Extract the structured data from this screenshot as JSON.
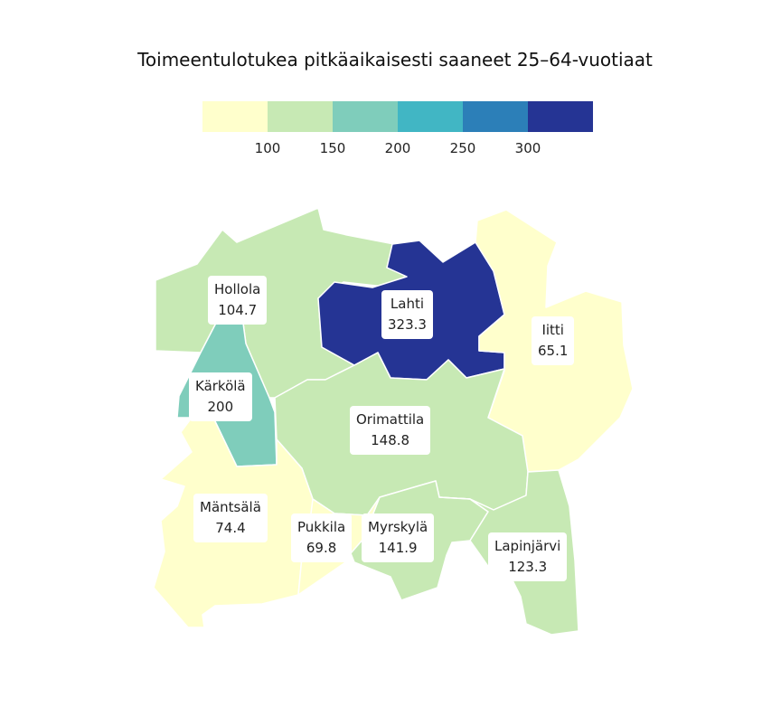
{
  "title": "Toimeentulotukea pitkäaikaisesti saaneet 25–64-vuotiaat",
  "legend": {
    "colors": [
      "#ffffcc",
      "#c7e9b4",
      "#7fcdbb",
      "#41b6c4",
      "#2c7fb8",
      "#253494"
    ],
    "ticks": [
      "100",
      "150",
      "200",
      "250",
      "300"
    ]
  },
  "regions": [
    {
      "id": "hollola",
      "name": "Hollola",
      "value": "104.7",
      "color": "#c7e9b4"
    },
    {
      "id": "lahti",
      "name": "Lahti",
      "value": "323.3",
      "color": "#253494"
    },
    {
      "id": "iitti",
      "name": "Iitti",
      "value": "65.1",
      "color": "#ffffcc"
    },
    {
      "id": "karkola",
      "name": "Kärkölä",
      "value": "200",
      "color": "#7fcdbb"
    },
    {
      "id": "orimattila",
      "name": "Orimattila",
      "value": "148.8",
      "color": "#c7e9b4"
    },
    {
      "id": "mantsala",
      "name": "Mäntsälä",
      "value": "74.4",
      "color": "#ffffcc"
    },
    {
      "id": "pukkila",
      "name": "Pukkila",
      "value": "69.8",
      "color": "#ffffcc"
    },
    {
      "id": "myrskyla",
      "name": "Myrskylä",
      "value": "141.9",
      "color": "#c7e9b4"
    },
    {
      "id": "lapinjarvi",
      "name": "Lapinjärvi",
      "value": "123.3",
      "color": "#c7e9b4"
    }
  ]
}
